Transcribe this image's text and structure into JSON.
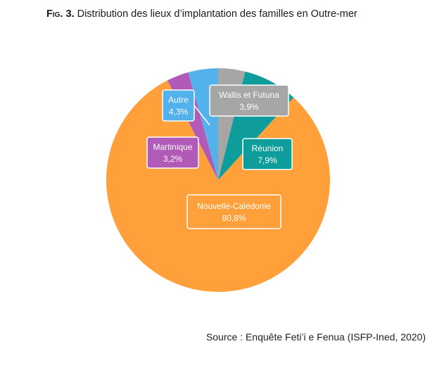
{
  "figure": {
    "label": "Fig. 3.",
    "title": "Distribution des lieux d’implantation des familles en Outre-mer",
    "source": "Source : Enquête Feti’i e Fenua (ISFP-Ined, 2020)"
  },
  "chart_data": {
    "type": "pie",
    "title": "Distribution des lieux d’implantation des familles en Outre-mer",
    "start": "12 o'clock",
    "direction": "clockwise",
    "slices": [
      {
        "name": "Wallis et Futuna",
        "value": 3.9,
        "label": "3,9%",
        "color": "#a6a6a6"
      },
      {
        "name": "Réunion",
        "value": 7.9,
        "label": "7,9%",
        "color": "#0e9d9b"
      },
      {
        "name": "Nouvelle-Calédonie",
        "value": 80.8,
        "label": "80,8%",
        "color": "#ffa03a"
      },
      {
        "name": "Martinique",
        "value": 3.2,
        "label": "3,2%",
        "color": "#b25ab8"
      },
      {
        "name": "Autre",
        "value": 4.3,
        "label": "4,3%",
        "color": "#53b2ec"
      }
    ]
  }
}
